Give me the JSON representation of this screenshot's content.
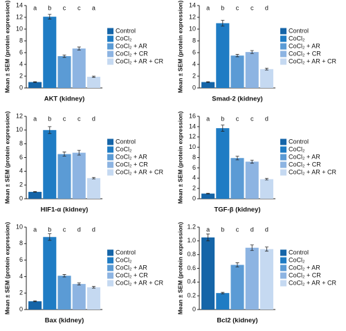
{
  "chart_data": [
    {
      "type": "bar",
      "xlabel": "AKT (kidney)",
      "ylabel": "Mean ± SEM (protein expression)",
      "categories": [
        "Control",
        "CoCl₂",
        "CoCl₂ + AR",
        "CoCl₂ + CR",
        "CoCl₂ + AR + CR"
      ],
      "colors": [
        "#1565a8",
        "#1f7cc4",
        "#5b9bd5",
        "#8db4e2",
        "#c5d9f1"
      ],
      "values": [
        1.0,
        12.1,
        5.4,
        6.7,
        1.9
      ],
      "errors": [
        0.05,
        0.4,
        0.2,
        0.25,
        0.1
      ],
      "letters": [
        "a",
        "b",
        "c",
        "c",
        "a"
      ],
      "ylim": [
        0,
        14
      ],
      "yticks": [
        0,
        2,
        4,
        6,
        8,
        10,
        12,
        14
      ]
    },
    {
      "type": "bar",
      "xlabel": "Smad-2 (kidney)",
      "ylabel": "Mean ± SEM (protein expression)",
      "categories": [
        "Control",
        "CoCl₂",
        "CoCl₂ + AR",
        "CoCl₂ + CR",
        "CoCl₂ + AR + CR"
      ],
      "colors": [
        "#1565a8",
        "#1f7cc4",
        "#5b9bd5",
        "#8db4e2",
        "#c5d9f1"
      ],
      "values": [
        1.0,
        11.0,
        5.5,
        6.1,
        3.2
      ],
      "errors": [
        0.05,
        0.5,
        0.2,
        0.25,
        0.15
      ],
      "letters": [
        "a",
        "b",
        "c",
        "c",
        "d"
      ],
      "ylim": [
        0,
        14
      ],
      "yticks": [
        0,
        2,
        4,
        6,
        8,
        10,
        12,
        14
      ]
    },
    {
      "type": "bar",
      "xlabel": "HIF1-α (kidney)",
      "ylabel": "Mean ± SEM (protein expression)",
      "categories": [
        "Control",
        "CoCl₂",
        "CoCl₂ + AR",
        "CoCl₂ + CR",
        "CoCl₂ + AR + CR"
      ],
      "colors": [
        "#1565a8",
        "#1f7cc4",
        "#5b9bd5",
        "#8db4e2",
        "#c5d9f1"
      ],
      "values": [
        1.0,
        10.0,
        6.5,
        6.7,
        3.0
      ],
      "errors": [
        0.05,
        0.5,
        0.3,
        0.35,
        0.1
      ],
      "letters": [
        "a",
        "b",
        "c",
        "c",
        "d"
      ],
      "ylim": [
        0,
        12
      ],
      "yticks": [
        0,
        2,
        4,
        6,
        8,
        10,
        12
      ]
    },
    {
      "type": "bar",
      "xlabel": "TGF-β (kidney)",
      "ylabel": "Mean ± SEM (protein expression)",
      "categories": [
        "Control",
        "CoCl₂",
        "CoCl₂ + AR",
        "CoCl₂ + CR",
        "CoCl₂ + AR + CR"
      ],
      "colors": [
        "#1565a8",
        "#1f7cc4",
        "#5b9bd5",
        "#8db4e2",
        "#c5d9f1"
      ],
      "values": [
        1.0,
        13.7,
        7.9,
        7.2,
        3.8
      ],
      "errors": [
        0.05,
        0.6,
        0.35,
        0.3,
        0.15
      ],
      "letters": [
        "a",
        "b",
        "c",
        "c",
        "d"
      ],
      "ylim": [
        0,
        16
      ],
      "yticks": [
        0,
        2,
        4,
        6,
        8,
        10,
        12,
        14,
        16
      ]
    },
    {
      "type": "bar",
      "xlabel": "Bax (kidney)",
      "ylabel": "Mean ± SEM (protein expression)",
      "categories": [
        "Control",
        "CoCl₂",
        "CoCl₂ + AR",
        "CoCl₂ + CR",
        "CoCl₂ + AR + CR"
      ],
      "colors": [
        "#1565a8",
        "#1f7cc4",
        "#5b9bd5",
        "#8db4e2",
        "#c5d9f1"
      ],
      "values": [
        1.0,
        8.8,
        4.1,
        3.1,
        2.7
      ],
      "errors": [
        0.05,
        0.4,
        0.15,
        0.12,
        0.1
      ],
      "letters": [
        "a",
        "b",
        "c",
        "d",
        "d"
      ],
      "ylim": [
        0,
        10
      ],
      "yticks": [
        0,
        2,
        4,
        6,
        8,
        10
      ]
    },
    {
      "type": "bar",
      "xlabel": "Bcl2 (kidney)",
      "ylabel": "Mean ± SEM (protein expression)",
      "categories": [
        "Control",
        "CoCl₂",
        "CoCl₂ + AR",
        "CoCl₂ + CR",
        "CoCl₂ + AR + CR"
      ],
      "colors": [
        "#1565a8",
        "#1f7cc4",
        "#5b9bd5",
        "#8db4e2",
        "#c5d9f1"
      ],
      "values": [
        1.05,
        0.24,
        0.65,
        0.9,
        0.88
      ],
      "errors": [
        0.05,
        0.01,
        0.03,
        0.04,
        0.03
      ],
      "letters": [
        "a",
        "b",
        "c",
        "d",
        "d"
      ],
      "ylim": [
        0,
        1.2
      ],
      "yticks": [
        0,
        0.2,
        0.4,
        0.6,
        0.8,
        {
          "value": 1.0,
          "label": "1.0"
        },
        1.2
      ]
    }
  ]
}
